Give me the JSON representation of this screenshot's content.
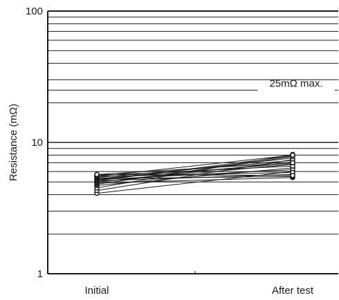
{
  "chart_data": {
    "type": "line",
    "scale": "log",
    "title": "",
    "xlabel": "",
    "ylabel": "Resistance (mΩ)",
    "categories": [
      "Initial",
      "After test"
    ],
    "ylim": [
      1,
      100
    ],
    "y_ticks": [
      {
        "value": 1,
        "label": "1"
      },
      {
        "value": 10,
        "label": "10"
      },
      {
        "value": 100,
        "label": "100"
      }
    ],
    "grid": "horizontal",
    "annotation": {
      "text": "25mΩ max.",
      "value": 25
    },
    "line_color": "#1a1a1a",
    "series": [
      {
        "values": [
          4.1,
          6.0
        ]
      },
      {
        "values": [
          4.3,
          7.4
        ]
      },
      {
        "values": [
          4.5,
          8.1
        ]
      },
      {
        "values": [
          4.7,
          6.4
        ]
      },
      {
        "values": [
          4.8,
          7.8
        ]
      },
      {
        "values": [
          4.9,
          5.4
        ]
      },
      {
        "values": [
          5.0,
          6.8
        ]
      },
      {
        "values": [
          5.0,
          7.1
        ]
      },
      {
        "values": [
          5.1,
          5.7
        ]
      },
      {
        "values": [
          5.1,
          7.9
        ]
      },
      {
        "values": [
          5.2,
          6.2
        ]
      },
      {
        "values": [
          5.2,
          7.6
        ]
      },
      {
        "values": [
          5.3,
          5.5
        ]
      },
      {
        "values": [
          5.3,
          6.9
        ]
      },
      {
        "values": [
          5.4,
          7.3
        ]
      },
      {
        "values": [
          5.5,
          5.9
        ]
      },
      {
        "values": [
          5.5,
          8.0
        ]
      },
      {
        "values": [
          5.6,
          6.6
        ]
      },
      {
        "values": [
          5.7,
          5.6
        ]
      },
      {
        "values": [
          5.7,
          7.0
        ]
      }
    ]
  }
}
